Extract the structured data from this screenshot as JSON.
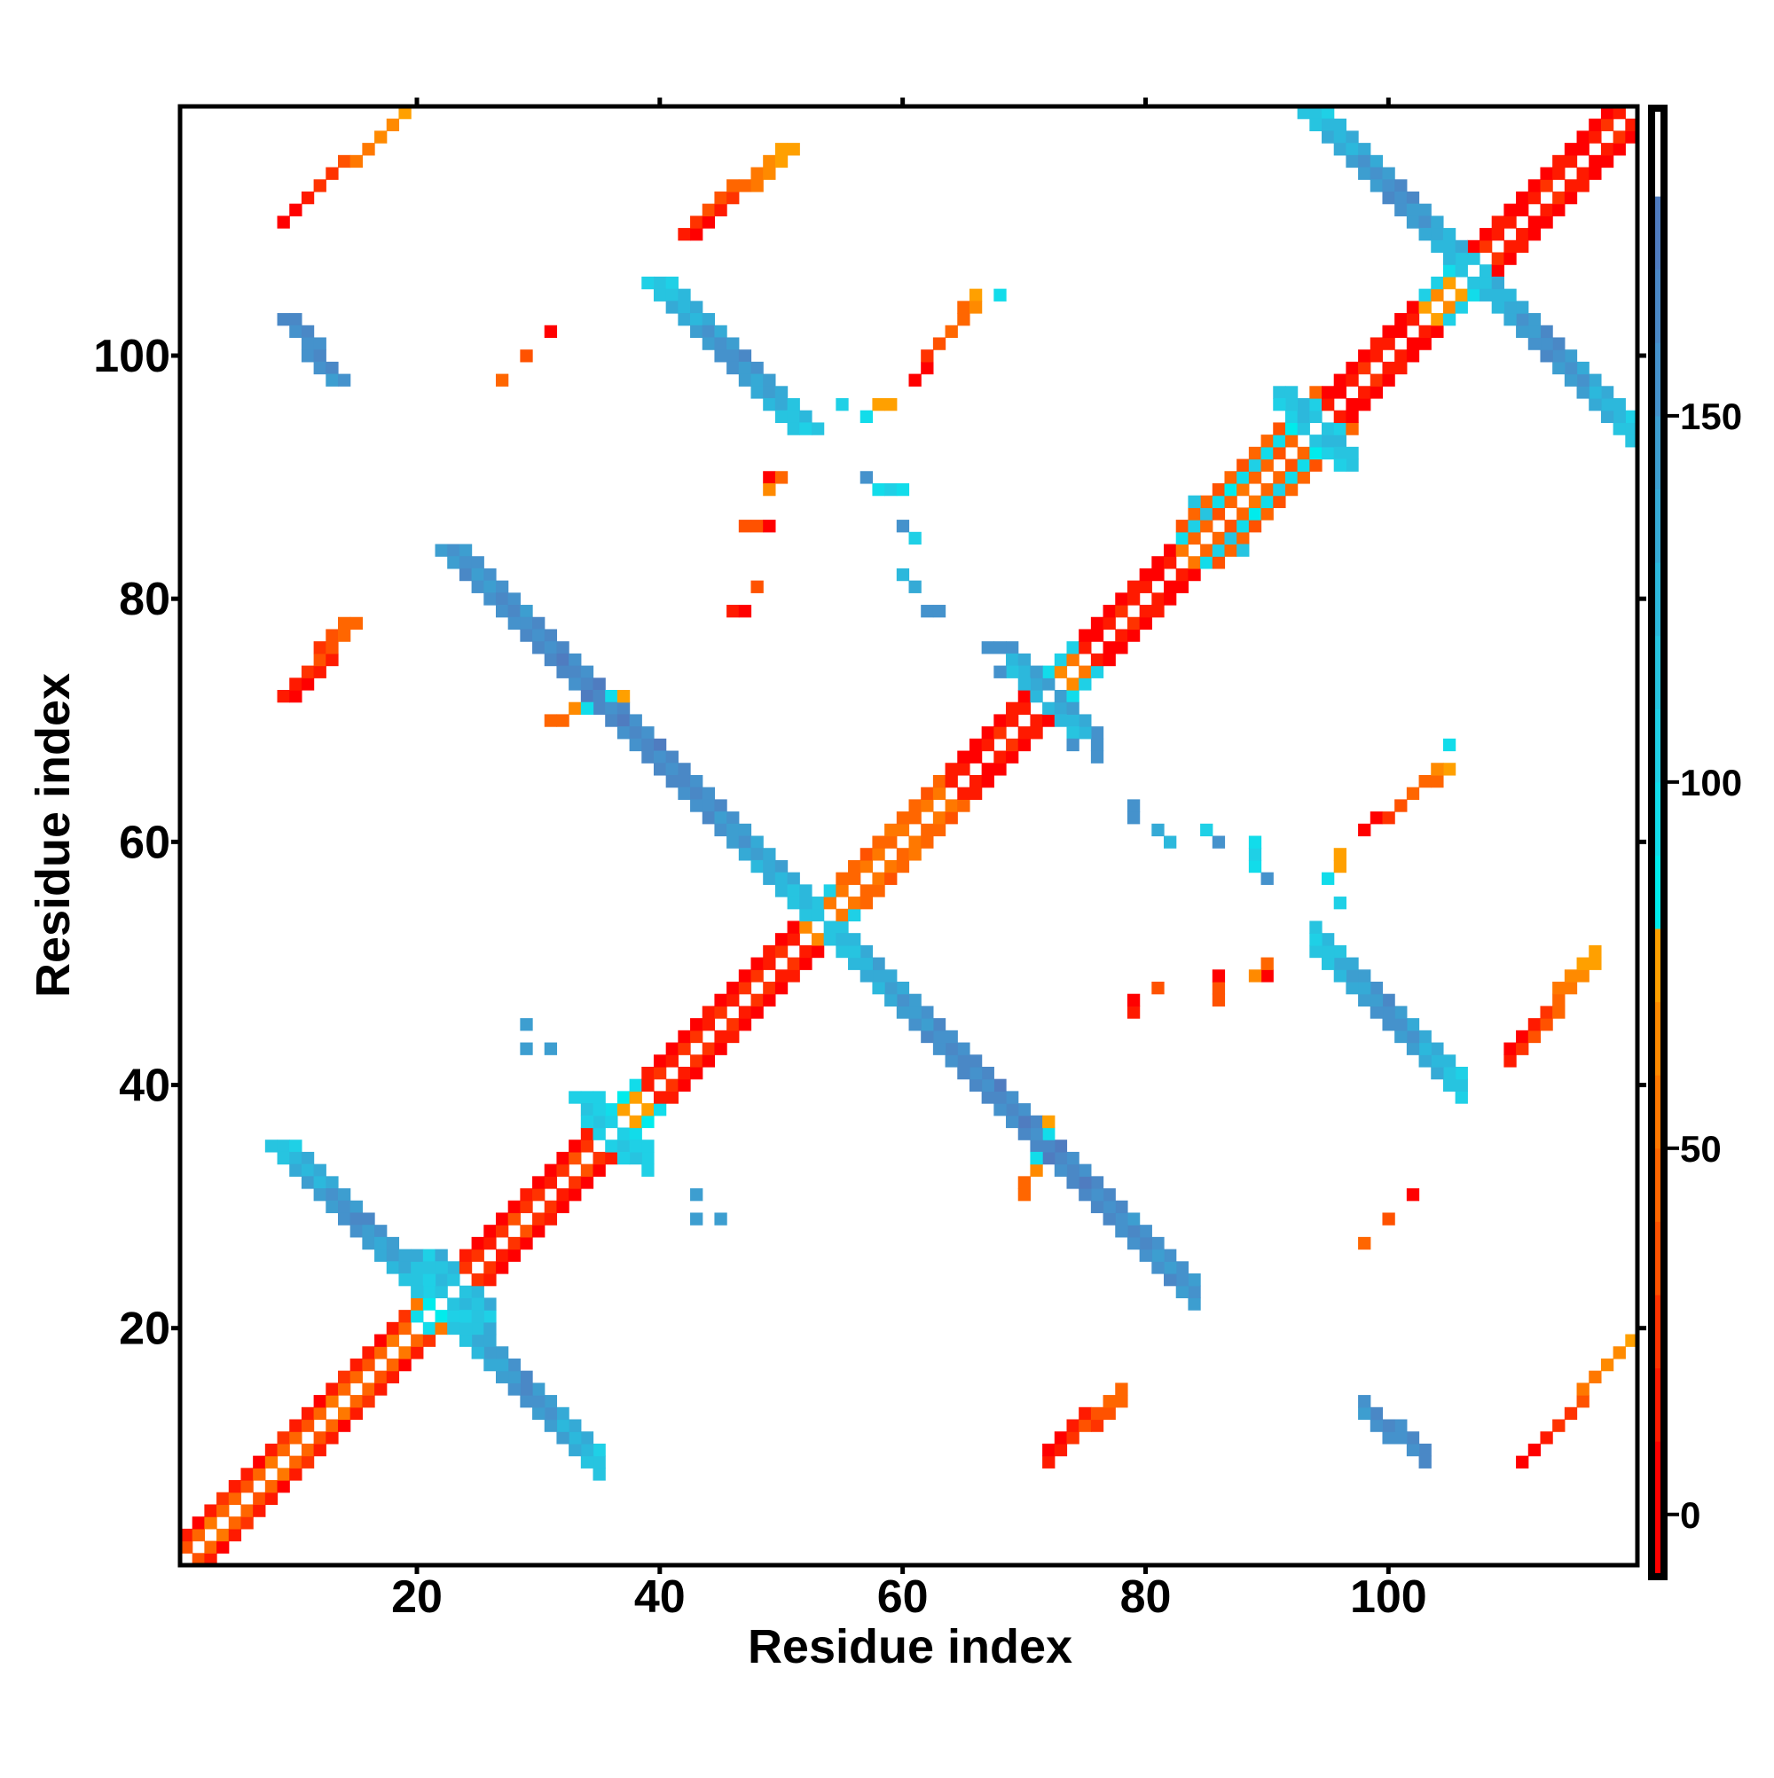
{
  "chart_data": {
    "type": "heatmap",
    "title": "",
    "xlabel": "Residue index",
    "ylabel": "Residue index",
    "xlim": [
      0.5,
      120.5
    ],
    "ylim": [
      0.5,
      120.5
    ],
    "n_residues": 120,
    "symmetric": true,
    "xticks": [
      20,
      40,
      60,
      80,
      100
    ],
    "yticks": [
      20,
      40,
      60,
      80,
      100
    ],
    "colorbar": {
      "range": [
        -8.5,
        192
      ],
      "ticks": [
        0,
        50,
        100,
        150
      ]
    },
    "colormap": [
      {
        "max": 10,
        "color": "#ff0000"
      },
      {
        "max": 20,
        "color": "#ff1a00"
      },
      {
        "max": 30,
        "color": "#ff3300"
      },
      {
        "max": 40,
        "color": "#ff5200"
      },
      {
        "max": 50,
        "color": "#ff6600"
      },
      {
        "max": 60,
        "color": "#ff7800"
      },
      {
        "max": 70,
        "color": "#ff8a00"
      },
      {
        "max": 80,
        "color": "#ffa000"
      },
      {
        "max": 90,
        "color": "#00ecec"
      },
      {
        "max": 100,
        "color": "#12dcea"
      },
      {
        "max": 110,
        "color": "#1fd0e6"
      },
      {
        "max": 120,
        "color": "#27c4e0"
      },
      {
        "max": 130,
        "color": "#2cb8dc"
      },
      {
        "max": 140,
        "color": "#35aad6"
      },
      {
        "max": 150,
        "color": "#3d9ed0"
      },
      {
        "max": 160,
        "color": "#4592cc"
      },
      {
        "max": 170,
        "color": "#4a88c6"
      },
      {
        "max": 180,
        "color": "#4f7cc0"
      },
      {
        "max": 999,
        "color": "#ffffff"
      }
    ],
    "diagonal_segments": [
      {
        "start": 1,
        "end": 19,
        "off1": 45,
        "off2": 15
      },
      {
        "start": 20,
        "end": 22,
        "off1": 90,
        "off2": 60
      },
      {
        "start": 23,
        "end": 34,
        "off1": 25,
        "off2": 5
      },
      {
        "start": 35,
        "end": 38,
        "off1": 70,
        "off2": 95
      },
      {
        "start": 39,
        "end": 51,
        "off1": 20,
        "off2": 5
      },
      {
        "start": 52,
        "end": 54,
        "off1": 60,
        "off2": 95
      },
      {
        "start": 55,
        "end": 63,
        "off1": 50,
        "off2": 45
      },
      {
        "start": 64,
        "end": 71,
        "off1": 15,
        "off2": 5
      },
      {
        "start": 72,
        "end": 74,
        "off1": 60,
        "off2": 100
      },
      {
        "start": 75,
        "end": 82,
        "off1": 15,
        "off2": 5
      },
      {
        "start": 83,
        "end": 94,
        "off1": 45,
        "off2": 95,
        "off3": 40
      },
      {
        "start": 95,
        "end": 102,
        "off1": 15,
        "off2": 5
      },
      {
        "start": 103,
        "end": 106,
        "off1": 70,
        "off2": 100
      },
      {
        "start": 107,
        "end": 119,
        "off1": 15,
        "off2": 5
      }
    ],
    "strips": [
      {
        "from": [
          22,
          84
        ],
        "to": [
          53,
          53
        ],
        "width": 3,
        "values": [
          150,
          165,
          160,
          110
        ]
      },
      {
        "from": [
          8,
          35
        ],
        "to": [
          20,
          23
        ],
        "width": 3,
        "values": [
          115,
          160,
          110
        ]
      },
      {
        "from": [
          93,
          120
        ],
        "to": [
          106,
          107
        ],
        "width": 3,
        "values": [
          115,
          160,
          115
        ]
      },
      {
        "from": [
          39,
          106
        ],
        "to": [
          51,
          94
        ],
        "width": 3,
        "values": [
          110,
          158,
          110
        ]
      },
      {
        "from": [
          9,
          103
        ],
        "to": [
          13,
          98
        ],
        "width": 2,
        "values": [
          160,
          155
        ]
      },
      {
        "from": [
          9,
          111
        ],
        "to": [
          19,
          120
        ],
        "width": 1,
        "values": [
          5,
          40,
          70
        ]
      },
      {
        "from": [
          42,
          110
        ],
        "to": [
          50,
          117
        ],
        "width": 2,
        "values": [
          5,
          40,
          75
        ]
      },
      {
        "from": [
          9,
          72
        ],
        "to": [
          14,
          78
        ],
        "width": 2,
        "values": [
          5,
          40
        ]
      },
      {
        "from": [
          61,
          98
        ],
        "to": [
          66,
          105
        ],
        "width": 1,
        "values": [
          5,
          30,
          55
        ]
      },
      {
        "from": [
          20,
          26
        ],
        "to": [
          24,
          21
        ],
        "width": 3,
        "values": [
          130,
          110
        ]
      },
      {
        "from": [
          33,
          39
        ],
        "to": [
          37,
          34
        ],
        "width": 3,
        "values": [
          100,
          110
        ]
      },
      {
        "from": [
          68,
          76
        ],
        "to": [
          74,
          69
        ],
        "width": 2,
        "values": [
          150,
          120
        ]
      },
      {
        "from": [
          91,
          97
        ],
        "to": [
          96,
          91
        ],
        "width": 2,
        "values": [
          120,
          110
        ]
      },
      {
        "from": [
          84,
          88
        ],
        "to": [
          88,
          84
        ],
        "width": 1,
        "values": [
          100,
          110
        ]
      }
    ],
    "cells": [
      [
        57,
        90,
        150
      ],
      [
        58,
        89,
        95
      ],
      [
        59,
        89,
        100
      ],
      [
        60,
        89,
        95
      ],
      [
        60,
        86,
        155
      ],
      [
        61,
        85,
        105
      ],
      [
        60,
        82,
        120
      ],
      [
        61,
        81,
        135
      ],
      [
        62,
        79,
        155
      ],
      [
        63,
        79,
        155
      ],
      [
        55,
        96,
        100
      ],
      [
        57,
        95,
        90
      ],
      [
        58,
        96,
        75
      ],
      [
        59,
        96,
        75
      ],
      [
        29,
        45,
        140
      ],
      [
        29,
        43,
        140
      ],
      [
        31,
        43,
        140
      ],
      [
        66,
        104,
        60
      ],
      [
        66,
        105,
        70
      ],
      [
        68,
        105,
        90
      ],
      [
        47,
        86,
        30
      ],
      [
        48,
        86,
        30
      ],
      [
        49,
        86,
        5
      ],
      [
        49,
        90,
        5
      ],
      [
        50,
        90,
        40
      ],
      [
        49,
        89,
        60
      ],
      [
        46,
        79,
        15
      ],
      [
        47,
        79,
        5
      ],
      [
        48,
        81,
        30
      ],
      [
        27,
        98,
        40
      ],
      [
        29,
        100,
        30
      ],
      [
        31,
        102,
        5
      ],
      [
        31,
        70,
        45
      ],
      [
        32,
        70,
        45
      ],
      [
        33,
        71,
        60
      ],
      [
        34,
        71,
        95
      ],
      [
        36,
        72,
        90
      ],
      [
        37,
        72,
        70
      ],
      [
        67,
        76,
        150
      ],
      [
        69,
        76,
        150
      ],
      [
        74,
        68,
        150
      ]
    ]
  }
}
